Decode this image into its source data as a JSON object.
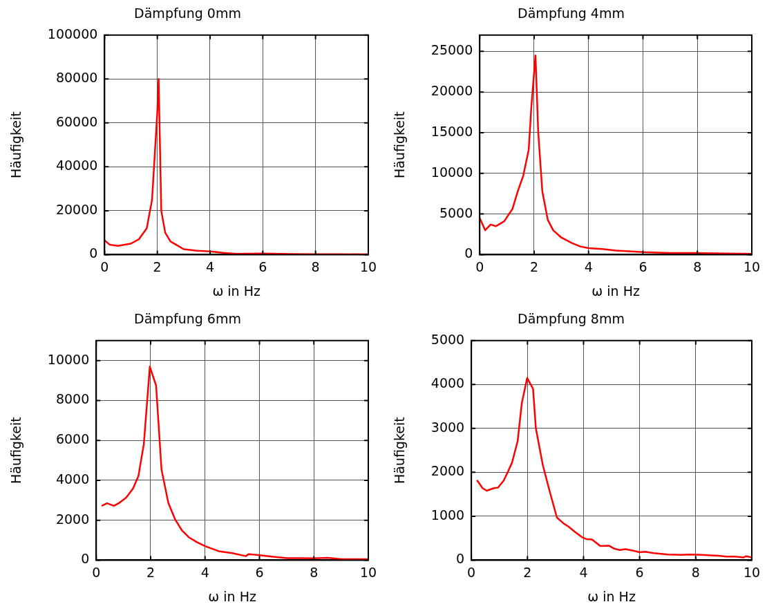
{
  "chart_data": [
    {
      "type": "line",
      "title": "Dämpfung 0mm",
      "xlabel": "ω in Hz",
      "ylabel": "Häufigkeit",
      "xlim": [
        0,
        10
      ],
      "xticks": [
        0,
        2,
        4,
        6,
        8,
        10
      ],
      "ylim": [
        0,
        100000
      ],
      "yticks": [
        0,
        20000,
        40000,
        60000,
        80000,
        100000
      ],
      "grid": true,
      "legend": false,
      "marker": "none",
      "line_style": "solid",
      "series": [
        {
          "color": "#ff0000",
          "x": [
            0,
            0.2,
            0.5,
            1,
            1.3,
            1.6,
            1.8,
            1.9,
            2,
            2.05,
            2.15,
            2.3,
            2.5,
            3,
            3.5,
            4,
            4.5,
            5,
            6,
            7,
            8,
            9,
            10
          ],
          "values": [
            6500,
            4500,
            4000,
            5000,
            7000,
            12000,
            25000,
            45000,
            65000,
            80000,
            20000,
            10000,
            6000,
            2500,
            1800,
            1500,
            800,
            400,
            500,
            300,
            200,
            200,
            100
          ]
        }
      ]
    },
    {
      "type": "line",
      "title": "Dämpfung 4mm",
      "xlabel": "ω in Hz",
      "ylabel": "Häufigkeit",
      "xlim": [
        0,
        10
      ],
      "xticks": [
        0,
        2,
        4,
        6,
        8,
        10
      ],
      "ylim": [
        0,
        27000
      ],
      "yticks": [
        0,
        5000,
        10000,
        15000,
        20000,
        25000
      ],
      "grid": true,
      "legend": false,
      "marker": "none",
      "line_style": "solid",
      "series": [
        {
          "color": "#ff0000",
          "x": [
            0,
            0.2,
            0.4,
            0.6,
            0.9,
            1.2,
            1.4,
            1.6,
            1.8,
            1.9,
            2.05,
            2.15,
            2.3,
            2.5,
            2.7,
            3,
            3.4,
            3.7,
            4,
            4.5,
            5,
            6,
            7,
            8,
            10
          ],
          "values": [
            4500,
            3000,
            3700,
            3500,
            4100,
            5600,
            7800,
            9700,
            12900,
            18300,
            24500,
            15100,
            7800,
            4300,
            3000,
            2100,
            1400,
            1000,
            800,
            700,
            500,
            300,
            200,
            200,
            100
          ]
        }
      ]
    },
    {
      "type": "line",
      "title": "Dämpfung 6mm",
      "xlabel": "ω in Hz",
      "ylabel": "Häufigkeit",
      "xlim": [
        0,
        10
      ],
      "xticks": [
        0,
        2,
        4,
        6,
        8,
        10
      ],
      "ylim": [
        0,
        11000
      ],
      "yticks": [
        0,
        2000,
        4000,
        6000,
        8000,
        10000
      ],
      "grid": true,
      "legend": false,
      "marker": "none",
      "line_style": "solid",
      "series": [
        {
          "color": "#ff0000",
          "x": [
            0.2,
            0.4,
            0.65,
            0.85,
            1.1,
            1.35,
            1.55,
            1.75,
            1.97,
            2.2,
            2.4,
            2.65,
            2.9,
            3.15,
            3.4,
            3.7,
            4,
            4.5,
            5,
            5.5,
            5.6,
            6,
            6.5,
            7,
            7.5,
            8,
            8.5,
            9,
            9.5,
            10
          ],
          "values": [
            2720,
            2850,
            2720,
            2870,
            3130,
            3580,
            4210,
            5810,
            9700,
            8750,
            4530,
            2870,
            2040,
            1490,
            1150,
            900,
            700,
            450,
            350,
            200,
            300,
            250,
            170,
            100,
            100,
            90,
            115,
            50,
            50,
            50
          ]
        }
      ]
    },
    {
      "type": "line",
      "title": "Dämpfung 8mm",
      "xlabel": "ω in Hz",
      "ylabel": "Häufigkeit",
      "xlim": [
        0,
        10
      ],
      "xticks": [
        0,
        2,
        4,
        6,
        8,
        10
      ],
      "ylim": [
        0,
        5000
      ],
      "yticks": [
        0,
        1000,
        2000,
        3000,
        4000,
        5000
      ],
      "grid": true,
      "legend": false,
      "marker": "none",
      "line_style": "solid",
      "series": [
        {
          "color": "#ff0000",
          "x": [
            0.2,
            0.4,
            0.55,
            0.8,
            0.95,
            1.15,
            1.3,
            1.45,
            1.65,
            1.8,
            1.99,
            2.2,
            2.3,
            2.55,
            2.8,
            3.05,
            3.3,
            3.45,
            3.7,
            3.95,
            4.1,
            4.3,
            4.6,
            4.9,
            5.1,
            5.3,
            5.5,
            5.8,
            6,
            6.2,
            6.5,
            7,
            7.5,
            7.8,
            8.2,
            8.5,
            8.8,
            9.1,
            9.4,
            9.7,
            9.8,
            10
          ],
          "values": [
            1820,
            1640,
            1580,
            1640,
            1650,
            1810,
            2010,
            2220,
            2710,
            3580,
            4150,
            3900,
            3000,
            2160,
            1550,
            970,
            830,
            770,
            640,
            520,
            480,
            470,
            320,
            330,
            260,
            230,
            250,
            210,
            180,
            190,
            160,
            130,
            120,
            130,
            120,
            110,
            100,
            80,
            80,
            60,
            90,
            60
          ]
        }
      ]
    }
  ]
}
